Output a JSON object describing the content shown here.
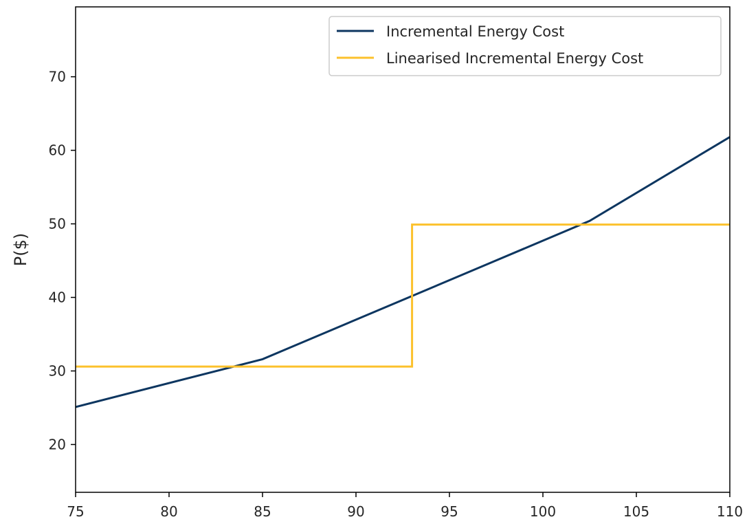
{
  "chart_data": {
    "type": "line",
    "title": "",
    "xlabel": "",
    "ylabel": "P($)",
    "xlim": [
      75,
      110
    ],
    "ylim": [
      13.5,
      79.5
    ],
    "xticks": [
      75,
      80,
      85,
      90,
      95,
      100,
      105,
      110
    ],
    "yticks": [
      20,
      30,
      40,
      50,
      60,
      70
    ],
    "grid": false,
    "legend_position": "top-right",
    "series": [
      {
        "name": "Incremental Energy Cost",
        "color": "#0d3660",
        "x": [
          75,
          85,
          102.5,
          110
        ],
        "y": [
          25.1,
          31.6,
          50.4,
          61.8
        ]
      },
      {
        "name": "Linearised Incremental Energy Cost",
        "color": "#fcc12c",
        "x": [
          75,
          93,
          93,
          110
        ],
        "y": [
          30.6,
          30.6,
          49.9,
          49.9
        ]
      }
    ]
  }
}
